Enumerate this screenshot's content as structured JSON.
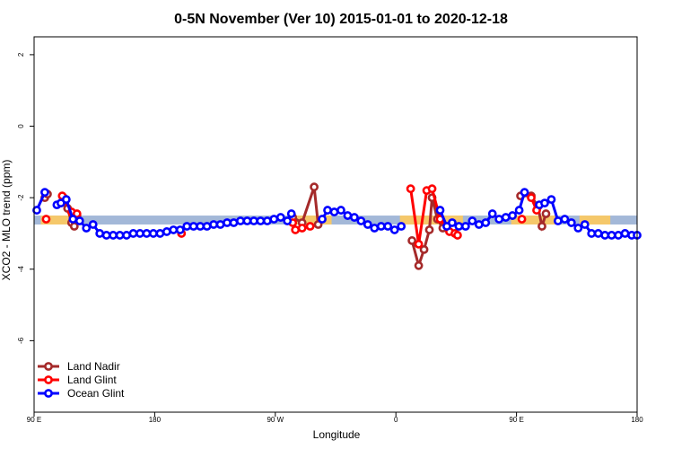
{
  "chart_data": {
    "type": "line",
    "title": "0-5N November (Ver 10)   2015-01-01 to 2020-12-18",
    "xlabel": "Longitude",
    "ylabel": "XCO2 - MLO trend (ppm)",
    "xlim": [
      90,
      540
    ],
    "ylim": [
      -8,
      2.5
    ],
    "xticks": [
      {
        "value": 90,
        "label": "90 E"
      },
      {
        "value": 180,
        "label": "180"
      },
      {
        "value": 270,
        "label": "90 W"
      },
      {
        "value": 360,
        "label": "0"
      },
      {
        "value": 450,
        "label": "90 E"
      },
      {
        "value": 540,
        "label": "180"
      }
    ],
    "yticks": [
      {
        "value": 2,
        "label": "2"
      },
      {
        "value": 0,
        "label": "0"
      },
      {
        "value": -2,
        "label": "-2"
      },
      {
        "value": -4,
        "label": "-4"
      },
      {
        "value": -6,
        "label": "-6"
      }
    ],
    "reference_band": {
      "y": [
        -2.75,
        -2.5
      ],
      "color": "#a3b8d8"
    },
    "land_segments": {
      "color": "#f5c86a",
      "ranges": [
        [
          95,
          117
        ],
        [
          282,
          312
        ],
        [
          363,
          410
        ],
        [
          446,
          480
        ],
        [
          497,
          520
        ]
      ]
    },
    "legend_position": "bottom-left",
    "series": [
      {
        "name": "Land Nadir",
        "color": "#a52a2a",
        "segments": [
          [
            [
              98,
              -2.0
            ],
            [
              100,
              -1.9
            ]
          ],
          [
            [
              112,
              -2.0
            ],
            [
              115,
              -2.3
            ],
            [
              118,
              -2.7
            ],
            [
              120,
              -2.8
            ],
            [
              122,
              -2.5
            ]
          ],
          [
            [
              283,
              -2.55
            ],
            [
              290,
              -2.7
            ],
            [
              299,
              -1.7
            ],
            [
              302,
              -2.75
            ]
          ],
          [
            [
              372,
              -3.2
            ],
            [
              377,
              -3.9
            ],
            [
              381,
              -3.45
            ],
            [
              385,
              -2.9
            ],
            [
              387,
              -2.0
            ],
            [
              391,
              -2.6
            ],
            [
              395,
              -2.85
            ]
          ],
          [
            [
              453,
              -1.95
            ],
            [
              461,
              -1.95
            ],
            [
              466,
              -2.25
            ],
            [
              469,
              -2.8
            ],
            [
              472,
              -2.45
            ]
          ]
        ]
      },
      {
        "name": "Land Glint",
        "color": "#ff0000",
        "segments": [
          [
            [
              99,
              -2.6
            ]
          ],
          [
            [
              111,
              -1.95
            ],
            [
              118,
              -2.4
            ],
            [
              122,
              -2.45
            ]
          ],
          [
            [
              200,
              -3.0
            ]
          ],
          [
            [
              283,
              -2.7
            ],
            [
              285,
              -2.9
            ],
            [
              290,
              -2.85
            ],
            [
              296,
              -2.8
            ]
          ],
          [
            [
              371,
              -1.75
            ],
            [
              377,
              -3.3
            ],
            [
              383,
              -1.8
            ],
            [
              387,
              -1.75
            ],
            [
              393,
              -2.6
            ],
            [
              400,
              -2.95
            ],
            [
              404,
              -3.0
            ],
            [
              406,
              -3.05
            ]
          ],
          [
            [
              454,
              -2.6
            ]
          ],
          [
            [
              461,
              -2.0
            ],
            [
              465,
              -2.35
            ]
          ]
        ]
      },
      {
        "name": "Ocean Glint",
        "color": "#0000ff",
        "segments": [
          [
            [
              92,
              -2.35
            ],
            [
              98,
              -1.85
            ]
          ],
          [
            [
              107,
              -2.2
            ],
            [
              110,
              -2.15
            ],
            [
              114,
              -2.05
            ],
            [
              119,
              -2.6
            ],
            [
              124,
              -2.65
            ],
            [
              129,
              -2.85
            ],
            [
              134,
              -2.75
            ],
            [
              139,
              -3.0
            ],
            [
              144,
              -3.05
            ],
            [
              149,
              -3.05
            ],
            [
              154,
              -3.05
            ],
            [
              159,
              -3.05
            ],
            [
              164,
              -3.0
            ],
            [
              169,
              -3.0
            ],
            [
              174,
              -3.0
            ],
            [
              179,
              -3.0
            ],
            [
              184,
              -3.0
            ],
            [
              189,
              -2.95
            ],
            [
              194,
              -2.9
            ],
            [
              199,
              -2.9
            ],
            [
              204,
              -2.8
            ],
            [
              209,
              -2.8
            ],
            [
              214,
              -2.8
            ],
            [
              219,
              -2.8
            ],
            [
              224,
              -2.75
            ],
            [
              229,
              -2.75
            ],
            [
              234,
              -2.7
            ],
            [
              239,
              -2.7
            ],
            [
              244,
              -2.65
            ],
            [
              249,
              -2.65
            ],
            [
              254,
              -2.65
            ],
            [
              259,
              -2.65
            ],
            [
              264,
              -2.65
            ],
            [
              269,
              -2.6
            ],
            [
              274,
              -2.55
            ],
            [
              279,
              -2.65
            ],
            [
              282,
              -2.45
            ]
          ],
          [
            [
              305,
              -2.6
            ],
            [
              309,
              -2.35
            ],
            [
              314,
              -2.4
            ],
            [
              319,
              -2.35
            ],
            [
              324,
              -2.5
            ],
            [
              329,
              -2.55
            ],
            [
              334,
              -2.65
            ],
            [
              339,
              -2.75
            ],
            [
              344,
              -2.85
            ],
            [
              349,
              -2.8
            ],
            [
              354,
              -2.8
            ],
            [
              359,
              -2.9
            ],
            [
              364,
              -2.8
            ]
          ],
          [
            [
              393,
              -2.35
            ],
            [
              398,
              -2.8
            ],
            [
              402,
              -2.7
            ],
            [
              407,
              -2.8
            ],
            [
              412,
              -2.8
            ],
            [
              417,
              -2.65
            ],
            [
              422,
              -2.75
            ],
            [
              427,
              -2.7
            ],
            [
              432,
              -2.45
            ],
            [
              437,
              -2.6
            ],
            [
              442,
              -2.55
            ],
            [
              447,
              -2.5
            ],
            [
              452,
              -2.35
            ],
            [
              456,
              -1.85
            ]
          ],
          [
            [
              467,
              -2.2
            ],
            [
              471,
              -2.15
            ],
            [
              476,
              -2.05
            ],
            [
              481,
              -2.65
            ],
            [
              486,
              -2.6
            ],
            [
              491,
              -2.7
            ],
            [
              496,
              -2.85
            ],
            [
              501,
              -2.75
            ],
            [
              506,
              -3.0
            ],
            [
              511,
              -3.0
            ],
            [
              516,
              -3.05
            ],
            [
              521,
              -3.05
            ],
            [
              526,
              -3.05
            ],
            [
              531,
              -3.0
            ],
            [
              536,
              -3.05
            ],
            [
              540,
              -3.05
            ]
          ]
        ]
      }
    ]
  }
}
